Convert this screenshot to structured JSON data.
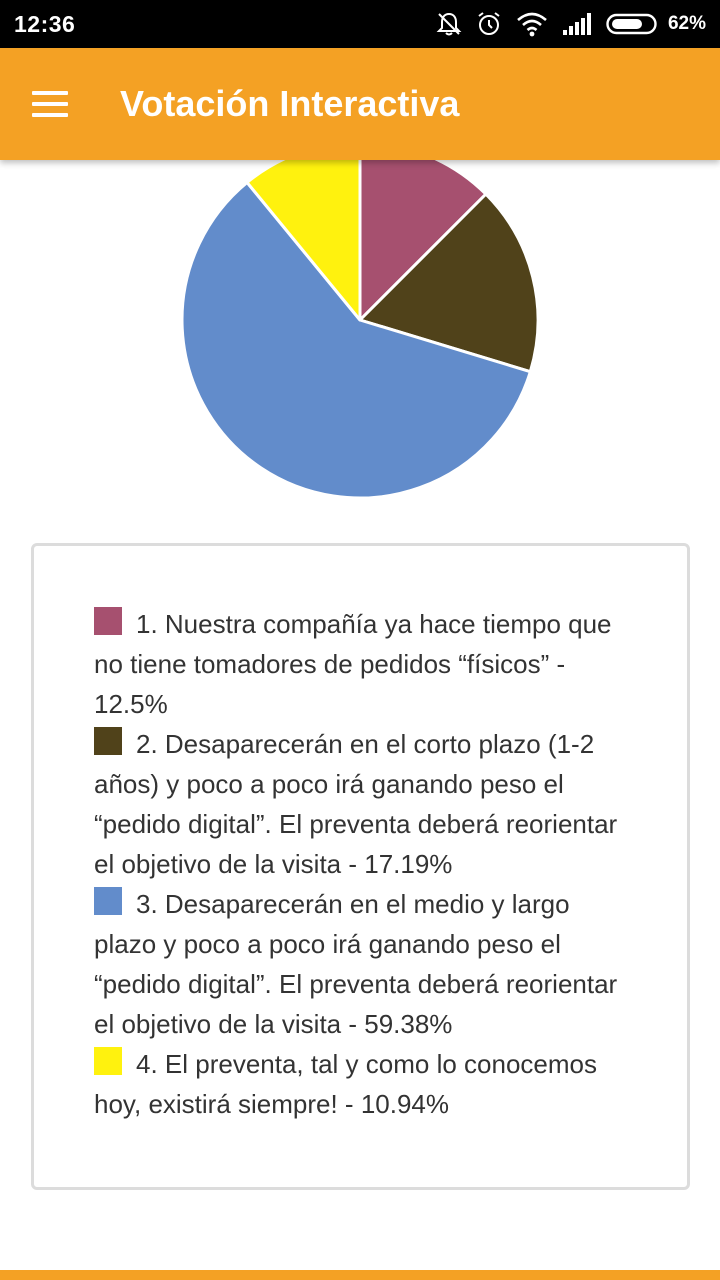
{
  "status_bar": {
    "time": "12:36",
    "battery": "62%",
    "icons": [
      "notifications-off-icon",
      "alarm-icon",
      "wifi-icon",
      "signal-icon",
      "battery-icon"
    ]
  },
  "app_bar": {
    "title": "Votación Interactiva",
    "menu_icon": "hamburger-menu-icon",
    "color": "#f4a124"
  },
  "chart_data": {
    "type": "pie",
    "categories": [
      "1",
      "2",
      "3",
      "4"
    ],
    "values": [
      12.5,
      17.19,
      59.38,
      10.94
    ],
    "colors": [
      "#a6506f",
      "#50421a",
      "#628ccb",
      "#fff20e"
    ]
  },
  "legend": {
    "items": [
      {
        "label": "1. Nuestra compañía ya hace tiempo que no tiene tomadores de pedidos “físicos” - 12.5%",
        "color": "#a6506f"
      },
      {
        "label": "2. Desaparecerán en el corto plazo (1-2 años) y poco a poco irá ganando peso el “pedido digital”. El preventa deberá reorientar el objetivo de la visita - 17.19%",
        "color": "#50421a"
      },
      {
        "label": "3. Desaparecerán en el medio y largo plazo y poco a poco irá ganando peso el “pedido digital”. El preventa deberá reorientar el objetivo de la visita - 59.38%",
        "color": "#628ccb"
      },
      {
        "label": "4. El preventa, tal y como lo conocemos hoy, existirá siempre! - 10.94%",
        "color": "#fff20e"
      }
    ]
  }
}
